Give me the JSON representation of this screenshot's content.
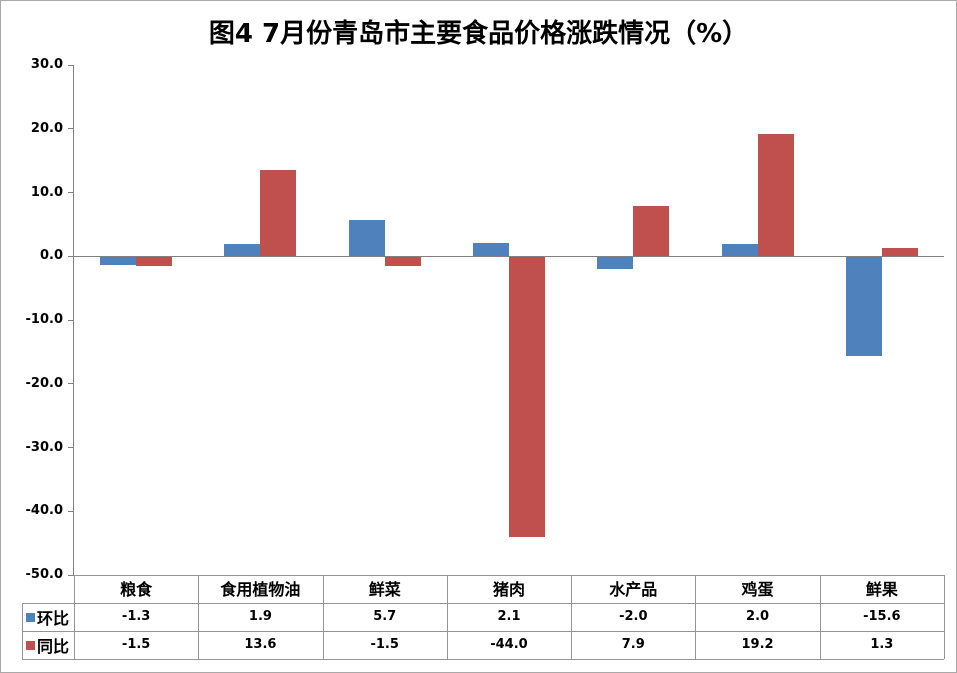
{
  "chart_data": {
    "type": "bar",
    "title": "图4  7月份青岛市主要食品价格涨跌情况（%）",
    "categories": [
      "粮食",
      "食用植物油",
      "鲜菜",
      "猪肉",
      "水产品",
      "鸡蛋",
      "鲜果"
    ],
    "series": [
      {
        "name": "环比",
        "key": "mom",
        "color": "#4F81BD",
        "values": [
          -1.3,
          1.9,
          5.7,
          2.1,
          -2.0,
          2.0,
          -15.6
        ]
      },
      {
        "name": "同比",
        "key": "yoy",
        "color": "#C0504D",
        "values": [
          -1.5,
          13.6,
          -1.5,
          -44.0,
          7.9,
          19.2,
          1.3
        ]
      }
    ],
    "ylim": [
      -50,
      30
    ],
    "ytick_labels": [
      "30.0",
      "20.0",
      "10.0",
      "0.0",
      "-10.0",
      "-20.0",
      "-30.0",
      "-40.0",
      "-50.0"
    ],
    "grid": false,
    "legend_position": "data-table-left",
    "value_decimals": 1,
    "axis_color": "#808080",
    "table_line_color": "#949494"
  }
}
